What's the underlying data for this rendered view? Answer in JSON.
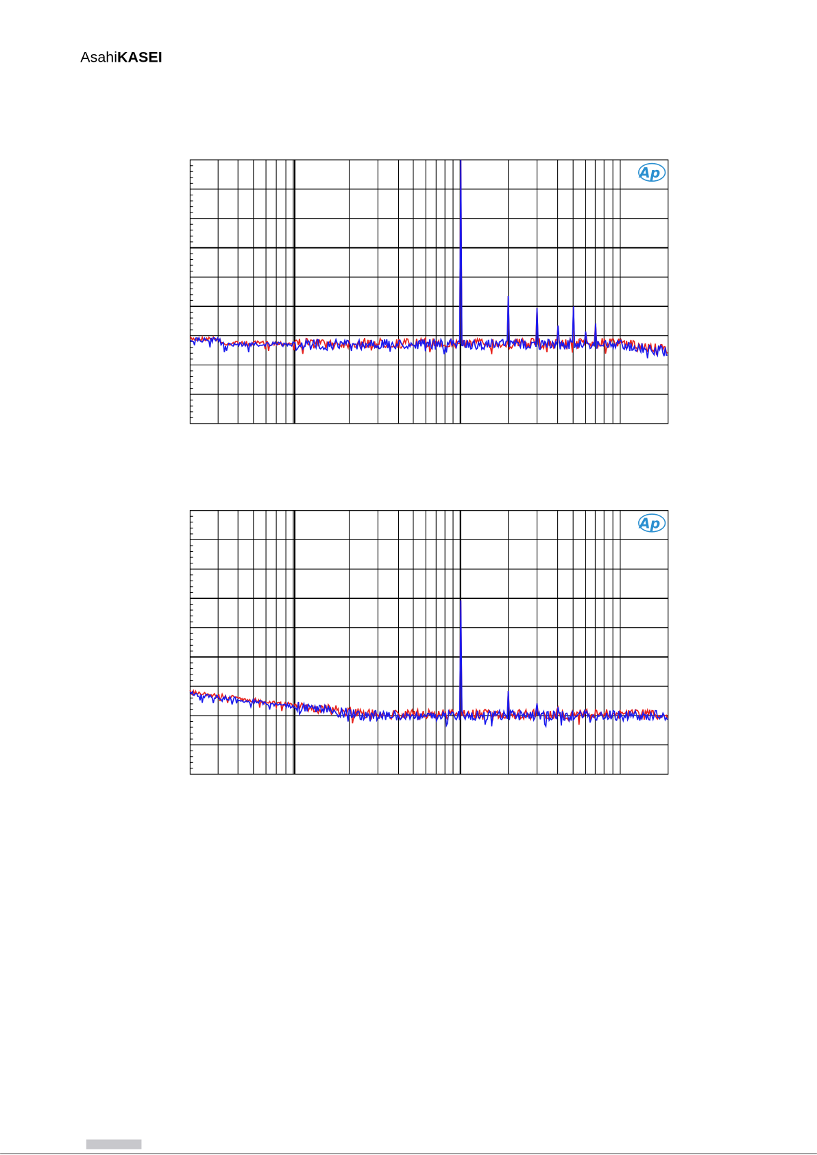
{
  "header": {
    "logo_light": "Asahi",
    "logo_bold": "KASEI"
  },
  "figures": [
    {
      "badge": "Ap"
    },
    {
      "badge": "Ap"
    }
  ]
}
